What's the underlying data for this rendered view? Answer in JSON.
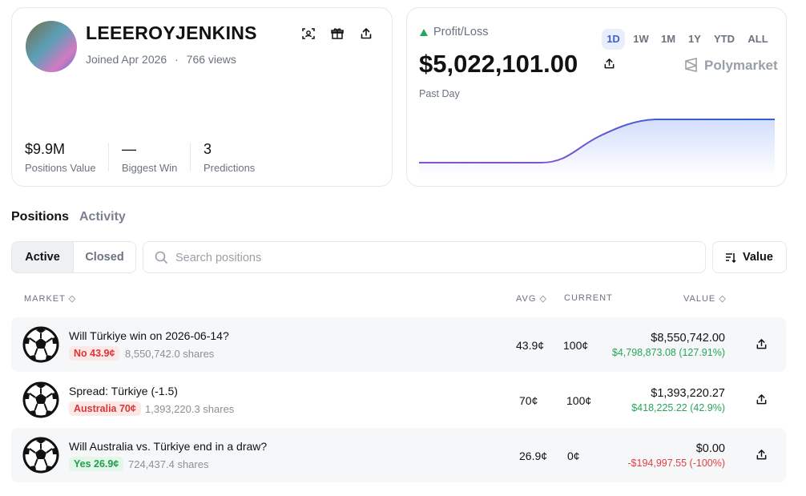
{
  "profile": {
    "username": "LEEEROYJENKINS",
    "joined": "Joined Apr 2026",
    "separator": "·",
    "views": "766 views"
  },
  "stats": [
    {
      "value": "$9.9M",
      "label": "Positions Value"
    },
    {
      "value": "—",
      "label": "Biggest Win"
    },
    {
      "value": "3",
      "label": "Predictions"
    }
  ],
  "pnl": {
    "label": "Profit/Loss",
    "amount": "$5,022,101.00",
    "period": "Past Day",
    "brand": "Polymarket",
    "ranges": [
      "1D",
      "1W",
      "1M",
      "1Y",
      "YTD",
      "ALL"
    ]
  },
  "tabs": [
    "Positions",
    "Activity"
  ],
  "filters": [
    "Active",
    "Closed"
  ],
  "search_placeholder": "Search positions",
  "sort": "Value",
  "table": {
    "headers": [
      "MARKET",
      "AVG",
      "CURRENT",
      "VALUE"
    ],
    "rows": [
      {
        "title": "Will Türkiye win on 2026-06-14?",
        "outcome": "No 43.9¢",
        "shares": "8,550,742.0 shares",
        "avg": "43.9¢",
        "current": "100¢",
        "value": "$8,550,742.00",
        "pnl": "$4,798,873.08 (127.91%)"
      },
      {
        "title": "Spread: Türkiye (-1.5)",
        "outcome": "Australia 70¢",
        "shares": "1,393,220.3 shares",
        "avg": "70¢",
        "current": "100¢",
        "value": "$1,393,220.27",
        "pnl": "$418,225.22 (42.9%)"
      },
      {
        "title": "Will Australia vs. Türkiye end in a draw?",
        "outcome": "Yes 26.9¢",
        "shares": "724,437.4 shares",
        "avg": "26.9¢",
        "current": "0¢",
        "value": "$0.00",
        "pnl": "-$194,997.55 (-100%)"
      }
    ]
  }
}
